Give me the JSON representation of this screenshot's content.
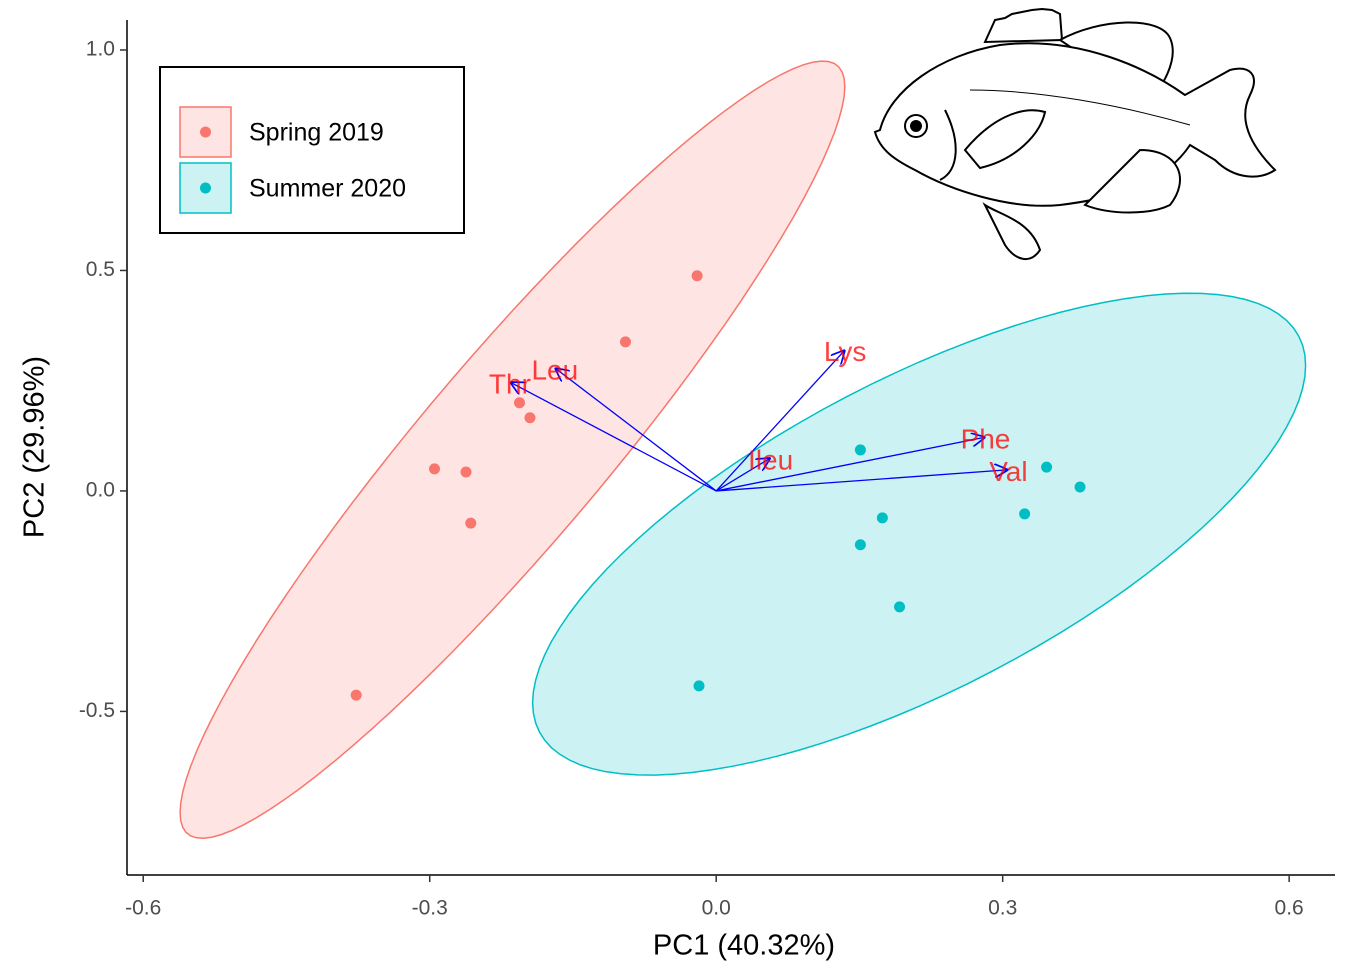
{
  "chart_data": {
    "type": "scatter",
    "x_label": "PC1 (40.32%)",
    "y_label": "PC2 (29.96%)",
    "xlim": [
      -0.617,
      0.648
    ],
    "ylim": [
      -0.871,
      1.068
    ],
    "xticks": [
      -0.6,
      -0.3,
      {
        "value": 0,
        "label": "0.0"
      },
      0.3,
      0.6
    ],
    "yticks": [
      -0.5,
      {
        "value": 0,
        "label": "0.0"
      },
      0.5,
      {
        "value": 1,
        "label": "1.0"
      }
    ],
    "series": [
      {
        "name": "Spring 2019",
        "color": "#F8766D",
        "x": [
          -0.02,
          -0.095,
          -0.206,
          -0.195,
          -0.295,
          -0.262,
          -0.257,
          -0.377
        ],
        "values": [
          0.488,
          0.338,
          0.2,
          0.166,
          0.05,
          0.043,
          -0.073,
          -0.463
        ]
      },
      {
        "name": "Summer 2020",
        "color": "#00BFC4",
        "x": [
          0.151,
          0.346,
          0.381,
          0.323,
          0.174,
          0.151,
          0.192,
          -0.018
        ],
        "values": [
          0.093,
          0.054,
          0.009,
          -0.052,
          -0.061,
          -0.122,
          -0.263,
          -0.442
        ]
      }
    ],
    "loadings": {
      "labels": [
        "Leu",
        "Thr",
        "Lys",
        "Ileu",
        "Phe",
        "Val"
      ],
      "x": [
        -0.169,
        -0.216,
        0.135,
        0.057,
        0.282,
        0.306
      ],
      "y": [
        0.279,
        0.247,
        0.32,
        0.075,
        0.122,
        0.048
      ],
      "color": "#0000ff"
    },
    "legend": "top-left"
  }
}
